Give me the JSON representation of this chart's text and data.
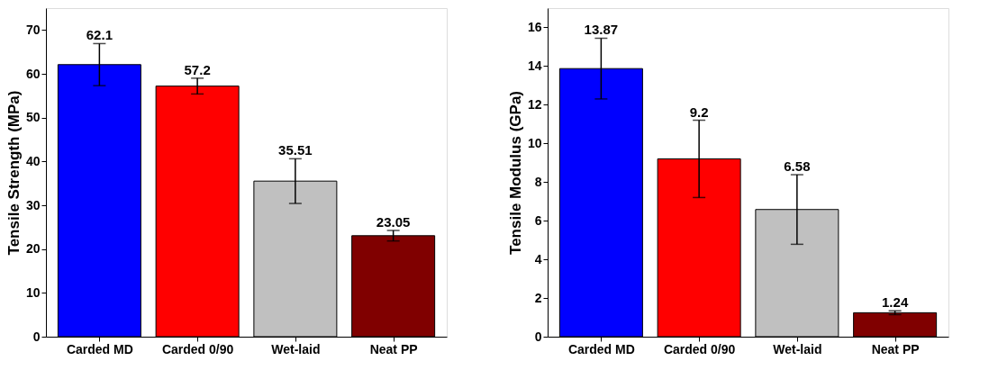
{
  "chart_data": [
    {
      "type": "bar",
      "ylabel": "Tensile Strength (MPa)",
      "categories": [
        "Carded MD",
        "Carded 0/90",
        "Wet-laid",
        "Neat PP"
      ],
      "values": [
        62.1,
        57.2,
        35.51,
        23.05
      ],
      "colors": [
        "#0000ff",
        "#ff0000",
        "#c0c0c0",
        "#800000"
      ],
      "errors": [
        4.8,
        1.8,
        5.1,
        1.2
      ],
      "ylim": [
        0,
        75
      ],
      "yticks": [
        0,
        10,
        20,
        30,
        40,
        50,
        60,
        70
      ],
      "data_labels": true,
      "grid": false
    },
    {
      "type": "bar",
      "ylabel": "Tensile Modulus (GPa)",
      "categories": [
        "Carded MD",
        "Carded 0/90",
        "Wet-laid",
        "Neat PP"
      ],
      "values": [
        13.87,
        9.2,
        6.58,
        1.24
      ],
      "colors": [
        "#0000ff",
        "#ff0000",
        "#c0c0c0",
        "#800000"
      ],
      "errors": [
        1.57,
        2.0,
        1.8,
        0.1
      ],
      "ylim": [
        0,
        17
      ],
      "yticks": [
        0,
        2,
        4,
        6,
        8,
        10,
        12,
        14,
        16
      ],
      "data_labels": true,
      "grid": false
    }
  ]
}
